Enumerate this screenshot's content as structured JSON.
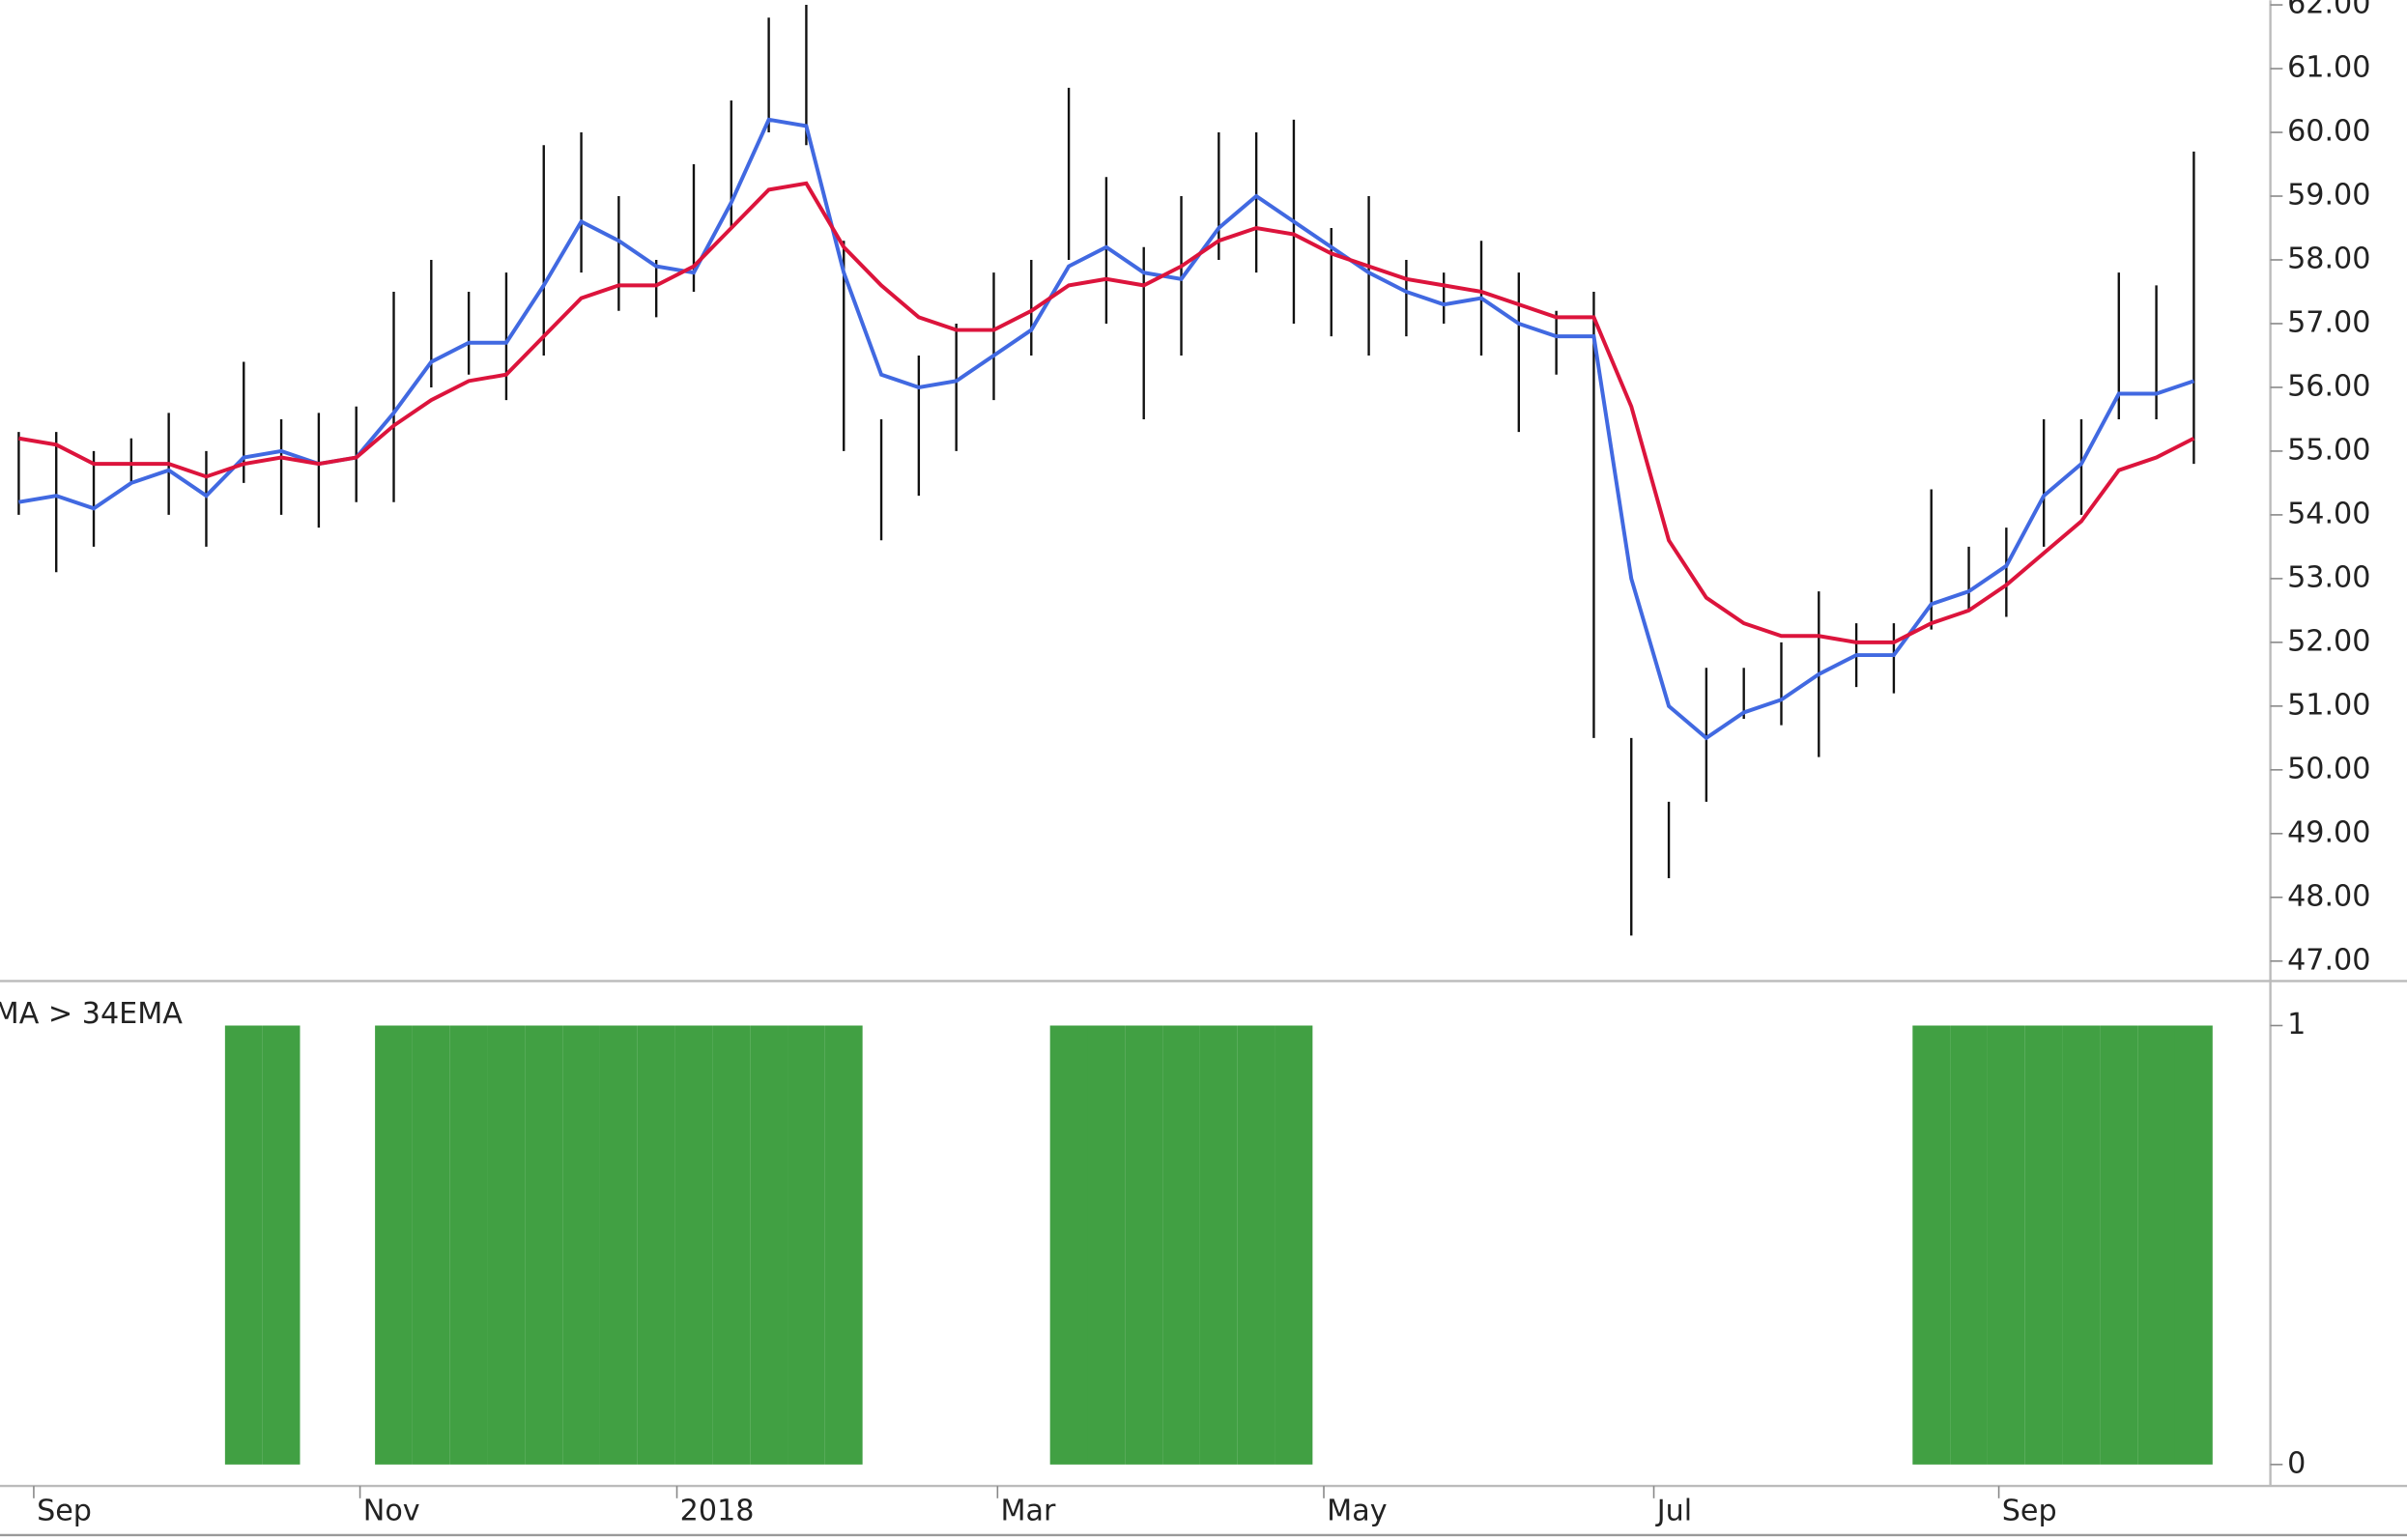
{
  "chart_data": [
    {
      "type": "ohlc",
      "x": [
        0.5,
        1.5,
        2.5,
        3.5,
        4.5,
        5.5,
        6.5,
        7.5,
        8.5,
        9.5,
        10.5,
        11.5,
        12.5,
        13.5,
        14.5,
        15.5,
        16.5,
        17.5,
        18.5,
        19.5,
        20.5,
        21.5,
        22.5,
        23.5,
        24.5,
        25.5,
        26.5,
        27.5,
        28.5,
        29.5,
        30.5,
        31.5,
        32.5,
        33.5,
        34.5,
        35.5,
        36.5,
        37.5,
        38.5,
        39.5,
        40.5,
        41.5,
        42.5,
        43.5,
        44.5,
        45.5,
        46.5,
        47.5,
        48.5,
        49.5,
        50.5,
        51.5,
        52.5,
        53.5,
        54.5,
        55.5,
        56.5,
        57.5,
        58.5
      ],
      "low": [
        54,
        53.1,
        53.5,
        54.5,
        54,
        53.5,
        54.5,
        54,
        53.8,
        54.2,
        54.2,
        56,
        56.2,
        55.8,
        56.5,
        57.8,
        57.2,
        57.1,
        57.5,
        58.5,
        60,
        59.8,
        55,
        53.6,
        54.3,
        55,
        55.8,
        56.5,
        58,
        57,
        55.5,
        56.5,
        58,
        57.8,
        57,
        56.8,
        56.5,
        56.8,
        57,
        56.5,
        55.3,
        56.2,
        50.5,
        47.4,
        48.3,
        49.5,
        50.8,
        50.7,
        50.2,
        51.3,
        51.2,
        52.2,
        52.5,
        52.4,
        53.5,
        54,
        55.5,
        55.5,
        54.8
      ],
      "high": [
        55.3,
        55.3,
        55,
        55.2,
        55.6,
        55,
        56.4,
        55.5,
        55.6,
        55.7,
        57.5,
        58,
        57.5,
        57.8,
        59.8,
        60,
        59,
        58,
        59.5,
        60.5,
        61.8,
        62,
        58.3,
        55.5,
        56.5,
        57,
        57.8,
        58,
        60.7,
        59.3,
        58.2,
        59,
        60,
        60,
        60.2,
        58.5,
        59,
        58,
        57.8,
        58.3,
        57.8,
        57.2,
        57.5,
        50.5,
        49.5,
        51.6,
        51.6,
        52,
        52.8,
        52.3,
        52.3,
        54.4,
        53.5,
        53.8,
        55.5,
        55.5,
        57.8,
        57.6,
        59.7
      ],
      "lines": [
        {
          "color": "#4169e1",
          "values": [
            54.2,
            54.3,
            54.1,
            54.5,
            54.7,
            54.3,
            54.9,
            55,
            54.8,
            54.9,
            55.6,
            56.4,
            56.7,
            56.7,
            57.6,
            58.6,
            58.3,
            57.9,
            57.8,
            58.9,
            60.2,
            60.1,
            57.8,
            56.2,
            56,
            56.1,
            56.5,
            56.9,
            57.9,
            58.2,
            57.8,
            57.7,
            58.5,
            59,
            58.6,
            58.2,
            57.8,
            57.5,
            57.3,
            57.4,
            57,
            56.8,
            56.8,
            53,
            51,
            50.5,
            50.9,
            51.1,
            51.5,
            51.8,
            51.8,
            52.6,
            52.8,
            53.2,
            54.3,
            54.8,
            55.9,
            55.9,
            56.1
          ]
        },
        {
          "color": "#dc143c",
          "values": [
            55.2,
            55.1,
            54.8,
            54.8,
            54.8,
            54.6,
            54.8,
            54.9,
            54.8,
            54.9,
            55.4,
            55.8,
            56.1,
            56.2,
            56.8,
            57.4,
            57.6,
            57.6,
            57.9,
            58.5,
            59.1,
            59.2,
            58.2,
            57.6,
            57.1,
            56.9,
            56.9,
            57.2,
            57.6,
            57.7,
            57.6,
            57.9,
            58.3,
            58.5,
            58.4,
            58.1,
            57.9,
            57.7,
            57.6,
            57.5,
            57.3,
            57.1,
            57.1,
            55.7,
            53.6,
            52.7,
            52.3,
            52.1,
            52.1,
            52,
            52,
            52.3,
            52.5,
            52.9,
            53.4,
            53.9,
            54.7,
            54.9,
            55.2
          ]
        }
      ],
      "bar_color": "#111111",
      "xlim": [
        0,
        60.5
      ],
      "ylim": [
        47,
        62
      ],
      "yticks": [
        {
          "value": 47,
          "label": "47.00"
        },
        {
          "value": 48,
          "label": "48.00"
        },
        {
          "value": 49,
          "label": "49.00"
        },
        {
          "value": 50,
          "label": "50.00"
        },
        {
          "value": 51,
          "label": "51.00"
        },
        {
          "value": 52,
          "label": "52.00"
        },
        {
          "value": 53,
          "label": "53.00"
        },
        {
          "value": 54,
          "label": "54.00"
        },
        {
          "value": 55,
          "label": "55.00"
        },
        {
          "value": 56,
          "label": "56.00"
        },
        {
          "value": 57,
          "label": "57.00"
        },
        {
          "value": 58,
          "label": "58.00"
        },
        {
          "value": 59,
          "label": "59.00"
        },
        {
          "value": 60,
          "label": "60.00"
        },
        {
          "value": 61,
          "label": "61.00"
        },
        {
          "value": 62,
          "label": "62.00"
        }
      ]
    },
    {
      "type": "bar",
      "title": "MA > 34EMA",
      "x": [
        0.5,
        1.5,
        2.5,
        3.5,
        4.5,
        5.5,
        6.5,
        7.5,
        8.5,
        9.5,
        10.5,
        11.5,
        12.5,
        13.5,
        14.5,
        15.5,
        16.5,
        17.5,
        18.5,
        19.5,
        20.5,
        21.5,
        22.5,
        23.5,
        24.5,
        25.5,
        26.5,
        27.5,
        28.5,
        29.5,
        30.5,
        31.5,
        32.5,
        33.5,
        34.5,
        35.5,
        36.5,
        37.5,
        38.5,
        39.5,
        40.5,
        41.5,
        42.5,
        43.5,
        44.5,
        45.5,
        46.5,
        47.5,
        48.5,
        49.5,
        50.5,
        51.5,
        52.5,
        53.5,
        54.5,
        55.5,
        56.5,
        57.5,
        58.5
      ],
      "values": [
        0,
        0,
        0,
        0,
        0,
        0,
        1,
        1,
        0,
        0,
        1,
        1,
        1,
        1,
        1,
        1,
        1,
        1,
        1,
        1,
        1,
        1,
        1,
        0,
        0,
        0,
        0,
        0,
        1,
        1,
        1,
        1,
        1,
        1,
        1,
        0,
        0,
        0,
        0,
        0,
        0,
        0,
        0,
        0,
        0,
        0,
        0,
        0,
        0,
        0,
        0,
        1,
        1,
        1,
        1,
        1,
        1,
        1,
        1
      ],
      "color": "#41a043",
      "xlim": [
        0,
        60.5
      ],
      "xticks": [
        {
          "value": 0.9,
          "label": "Sep"
        },
        {
          "value": 9.6,
          "label": "Nov"
        },
        {
          "value": 18.05,
          "label": "2018"
        },
        {
          "value": 26.6,
          "label": "Mar"
        },
        {
          "value": 35.3,
          "label": "May"
        },
        {
          "value": 44.1,
          "label": "Jul"
        },
        {
          "value": 53.3,
          "label": "Sep"
        }
      ],
      "ylim": [
        0,
        1
      ],
      "yticks": [
        0,
        1
      ]
    }
  ]
}
